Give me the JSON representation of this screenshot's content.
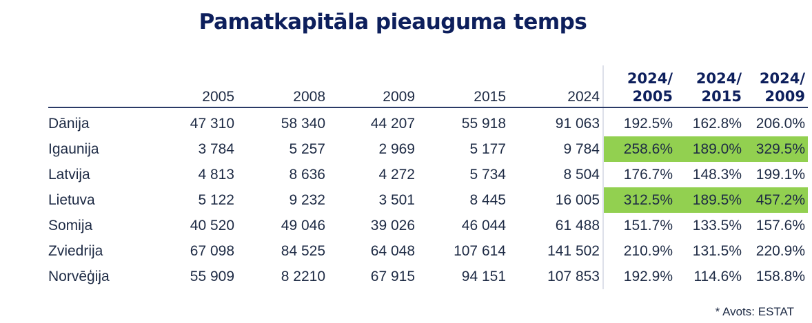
{
  "title": "Pamatkapitāla pieauguma temps",
  "source": "* Avots: ESTAT",
  "colors": {
    "title": "#0d1f5c",
    "text": "#1d2a44",
    "highlight": "#92d050",
    "separator": "#dde0ea"
  },
  "chart_data": {
    "type": "table",
    "title": "Pamatkapitāla pieauguma temps",
    "columns": [
      "2005",
      "2008",
      "2009",
      "2015",
      "2024",
      "2024/\n2005",
      "2024/\n2015",
      "2024/\n2009"
    ],
    "ratio_headers": [
      {
        "top": "2024/",
        "bottom": "2005"
      },
      {
        "top": "2024/",
        "bottom": "2015"
      },
      {
        "top": "2024/",
        "bottom": "2009"
      }
    ],
    "rows": [
      {
        "country": "Dānija",
        "values": [
          "47 310",
          "58 340",
          "44 207",
          "55 918",
          "91 063"
        ],
        "ratios": [
          "192.5%",
          "162.8%",
          "206.0%"
        ],
        "highlight": false
      },
      {
        "country": "Igaunija",
        "values": [
          "3 784",
          "5 257",
          "2 969",
          "5 177",
          "9 784"
        ],
        "ratios": [
          "258.6%",
          "189.0%",
          "329.5%"
        ],
        "highlight": true
      },
      {
        "country": "Latvija",
        "values": [
          "4 813",
          "8 636",
          "4 272",
          "5 734",
          "8 504"
        ],
        "ratios": [
          "176.7%",
          "148.3%",
          "199.1%"
        ],
        "highlight": false
      },
      {
        "country": "Lietuva",
        "values": [
          "5 122",
          "9 232",
          "3 501",
          "8 445",
          "16 005"
        ],
        "ratios": [
          "312.5%",
          "189.5%",
          "457.2%"
        ],
        "highlight": true
      },
      {
        "country": "Somija",
        "values": [
          "40 520",
          "49 046",
          "39 026",
          "46 044",
          "61 488"
        ],
        "ratios": [
          "151.7%",
          "133.5%",
          "157.6%"
        ],
        "highlight": false
      },
      {
        "country": "Zviedrija",
        "values": [
          "67 098",
          "84 525",
          "64 048",
          "107 614",
          "141 502"
        ],
        "ratios": [
          "210.9%",
          "131.5%",
          "220.9%"
        ],
        "highlight": false
      },
      {
        "country": "Norvēģija",
        "values": [
          "55 909",
          "8 2210",
          "67 915",
          "94 151",
          "107 853"
        ],
        "ratios": [
          "192.9%",
          "114.6%",
          "158.8%"
        ],
        "highlight": false
      }
    ]
  }
}
